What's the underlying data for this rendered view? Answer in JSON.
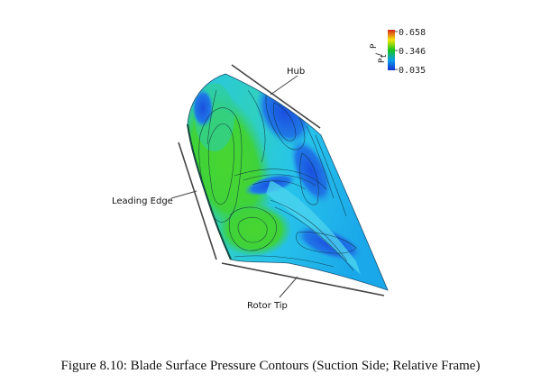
{
  "figure": {
    "caption": "Figure 8.10: Blade Surface Pressure Contours (Suction Side; Relative Frame)",
    "labels": {
      "hub": "Hub",
      "leading_edge": "Leading Edge",
      "rotor_tip": "Rotor Tip"
    },
    "legend": {
      "variable_num": "P",
      "variable_den": "P",
      "variable_sub": "t",
      "max": "0.658",
      "mid": "0.346",
      "min": "0.035",
      "colors": [
        "#d7261e",
        "#f2e60c",
        "#19c41a",
        "#0a9ee8",
        "#1631d4"
      ]
    },
    "colors": {
      "blade_green": "#3fd23a",
      "blade_cyan": "#22c9e8",
      "blade_blue": "#1a5fe0"
    }
  }
}
